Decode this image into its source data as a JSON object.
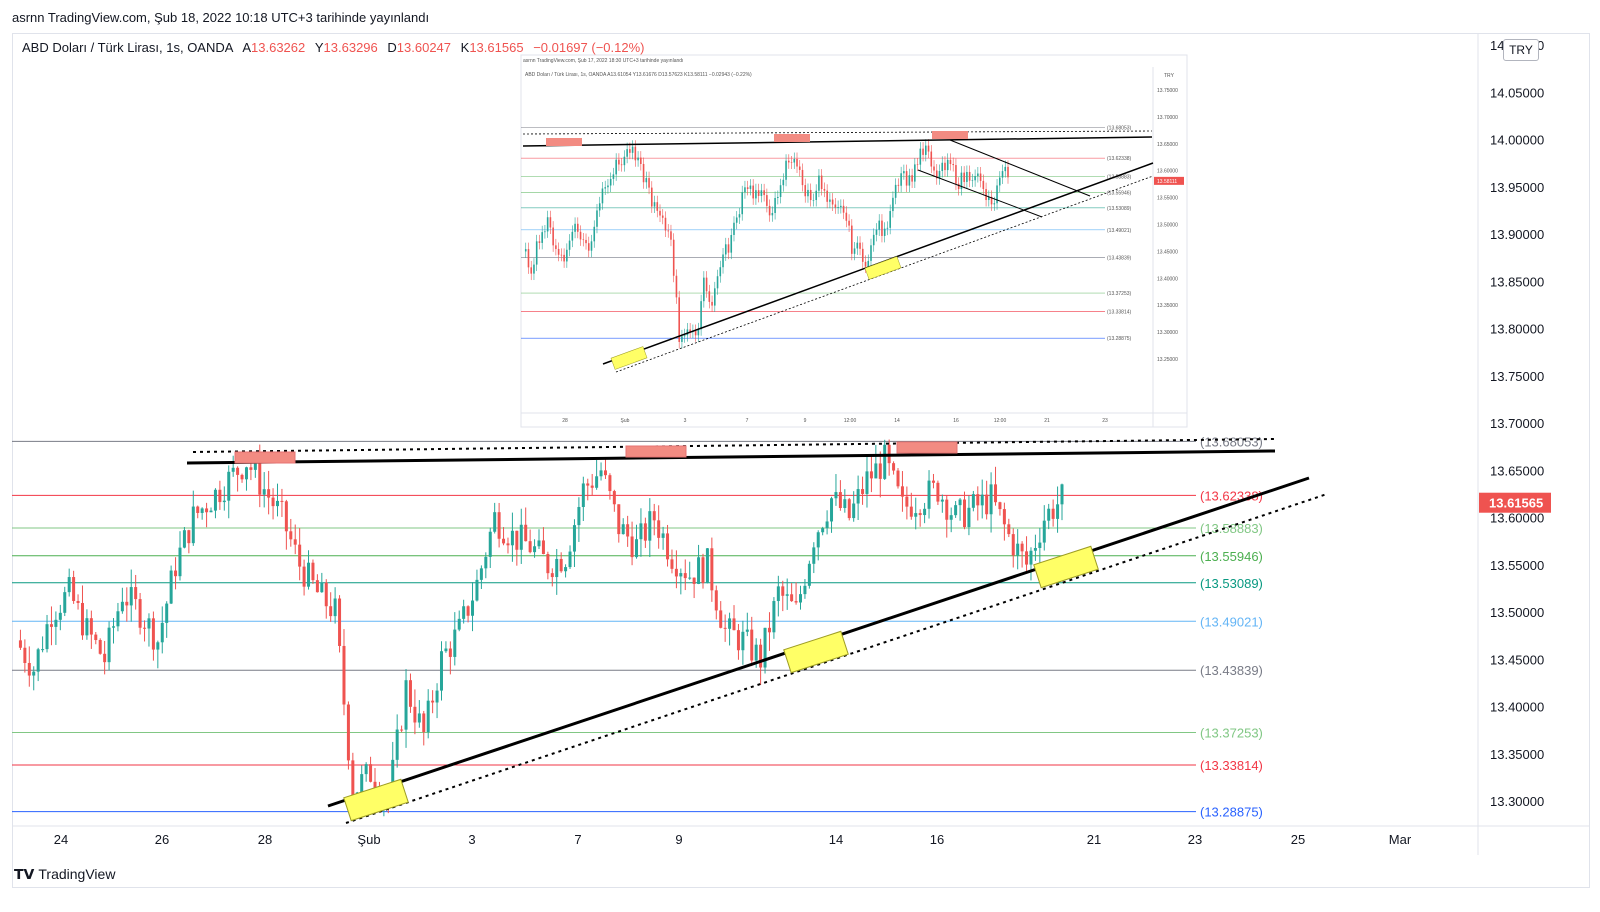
{
  "header": {
    "published_text": "asrnn TradingView.com, Şub 18, 2022 10:18 UTC+3 tarihinde yayınlandı"
  },
  "symbol": {
    "name": "ABD Doları / Türk Lirası, 1s, OANDA",
    "open_label": "A",
    "open": "13.63262",
    "high_label": "Y",
    "high": "13.63296",
    "low_label": "D",
    "low": "13.60247",
    "close_label": "K",
    "close": "13.61565",
    "change": "−0.01697 (−0.12%)"
  },
  "currency_label": "TRY",
  "footer": {
    "logo_text": "TradingView"
  },
  "colors": {
    "up": "#26a69a",
    "down": "#ef5350",
    "price_tag": "#ef5350",
    "zone_red": "#f28b82",
    "zone_yellow": "#ffff66"
  },
  "chart_data": {
    "type": "candlestick",
    "ylim": [
      13.27,
      14.1
    ],
    "y_ticks": [
      "14.10000",
      "14.05000",
      "14.00000",
      "13.95000",
      "13.90000",
      "13.85000",
      "13.80000",
      "13.75000",
      "13.70000",
      "13.65000",
      "13.60000",
      "13.55000",
      "13.50000",
      "13.45000",
      "13.40000",
      "13.35000",
      "13.30000"
    ],
    "x_ticks": [
      "24",
      "26",
      "28",
      "Şub",
      "3",
      "7",
      "9",
      "14",
      "16",
      "21",
      "23",
      "25",
      "Mar"
    ],
    "last_price": "13.61565",
    "fib_levels": [
      {
        "label": "(13.68053)",
        "value": 13.68053,
        "color": "#787b86"
      },
      {
        "label": "(13.62338)",
        "value": 13.62338,
        "color": "#f23645"
      },
      {
        "label": "(13.58883)",
        "value": 13.58883,
        "color": "#81c784"
      },
      {
        "label": "(13.55946)",
        "value": 13.55946,
        "color": "#4caf50"
      },
      {
        "label": "(13.53089)",
        "value": 13.53089,
        "color": "#089981"
      },
      {
        "label": "(13.49021)",
        "value": 13.49021,
        "color": "#64b5f6"
      },
      {
        "label": "(13.43839)",
        "value": 13.43839,
        "color": "#787b86"
      },
      {
        "label": "(13.37253)",
        "value": 13.37253,
        "color": "#81c784"
      },
      {
        "label": "(13.33814)",
        "value": 13.33814,
        "color": "#f23645"
      },
      {
        "label": "(13.28875)",
        "value": 13.28875,
        "color": "#2962ff"
      }
    ],
    "price_path": [
      13.47,
      13.44,
      13.5,
      13.52,
      13.48,
      13.45,
      13.52,
      13.5,
      13.47,
      13.55,
      13.6,
      13.62,
      13.64,
      13.66,
      13.63,
      13.6,
      13.55,
      13.52,
      13.5,
      13.31,
      13.33,
      13.3,
      13.42,
      13.37,
      13.45,
      13.48,
      13.53,
      13.6,
      13.58,
      13.57,
      13.55,
      13.56,
      13.63,
      13.65,
      13.59,
      13.57,
      13.6,
      13.56,
      13.54,
      13.55,
      13.48,
      13.47,
      13.45,
      13.52,
      13.5,
      13.58,
      13.62,
      13.6,
      13.64,
      13.66,
      13.61,
      13.62,
      13.63,
      13.6,
      13.61,
      13.62,
      13.58,
      13.55,
      13.6,
      13.62
    ],
    "inset": {
      "title": "asrnn TradingView.com, Şub 17, 2022 18:30 UTC+3 tarihinde yayınlandı",
      "symbol": "ABD Doları / Türk Lirası, 1s, OANDA A13.61054 Y13.61676 D13.57623 K13.58111 −0.02943 (−0.22%)",
      "currency": "TRY",
      "last_price": "13.58111",
      "y_ticks": [
        "13.75000",
        "13.70000",
        "13.65000",
        "13.60000",
        "13.55000",
        "13.50000",
        "13.45000",
        "13.40000",
        "13.35000",
        "13.30000",
        "13.25000"
      ],
      "x_ticks": [
        "28",
        "Şub",
        "3",
        "7",
        "9",
        "12:00",
        "14",
        "16",
        "12:00",
        "21",
        "23"
      ],
      "levels": [
        "(13.68053)",
        "(13.62338)",
        "(13.58883)",
        "(13.55946)",
        "(13.53089)",
        "(13.49021)",
        "(13.43839)",
        "(13.37253)",
        "(13.33814)",
        "(13.28875)"
      ]
    }
  }
}
